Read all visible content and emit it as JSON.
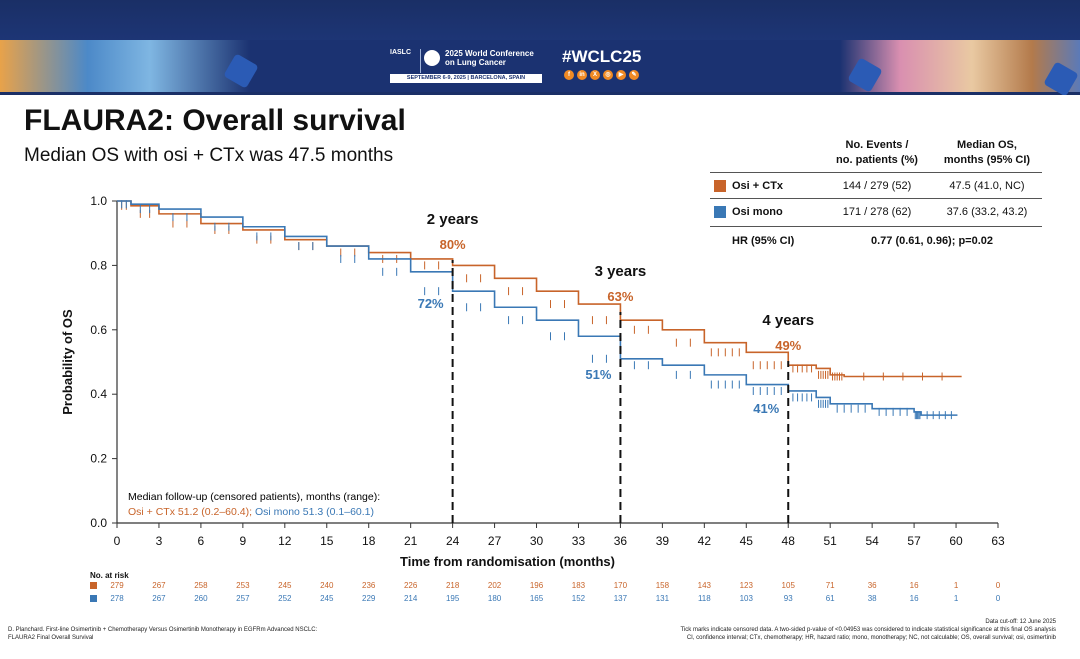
{
  "banner": {
    "society": "IASLC",
    "conference_line1": "2025 World Conference",
    "conference_line2": "on Lung Cancer",
    "dates_location": "SEPTEMBER 6-9, 2025 | BARCELONA, SPAIN",
    "hashtag": "#WCLC25",
    "social_icons": [
      "facebook-icon",
      "linkedin-icon",
      "x-icon",
      "instagram-icon",
      "youtube-icon",
      "podcast-icon"
    ]
  },
  "slide": {
    "title": "FLAURA2: Overall survival",
    "subtitle": "Median OS with osi + CTx was 47.5 months"
  },
  "table": {
    "col1_line1": "No. Events /",
    "col1_line2": "no. patients (%)",
    "col2_line1": "Median OS,",
    "col2_line2": "months (95% CI)",
    "rows": [
      {
        "arm": "Osi + CTx",
        "events": "144 / 279 (52)",
        "median": "47.5 (41.0, NC)",
        "color": "#c8642a"
      },
      {
        "arm": "Osi mono",
        "events": "171 / 278 (62)",
        "median": "37.6 (33.2, 43.2)",
        "color": "#3a78b5"
      }
    ],
    "hr_label": "HR (95% CI)",
    "hr_value": "0.77 (0.61, 0.96); p=0.02"
  },
  "followup": {
    "heading": "Median follow-up (censored patients), months (range):",
    "osi_ctx": "Osi + CTx 51.2 (0.2–60.4);",
    "osi_mono": "Osi mono 51.3 (0.1–60.1)"
  },
  "chart_data": {
    "type": "line",
    "xlabel": "Time from randomisation (months)",
    "ylabel": "Probability of OS",
    "xlim": [
      0,
      63
    ],
    "ylim": [
      0,
      1.0
    ],
    "xticks": [
      "0",
      "3",
      "6",
      "9",
      "12",
      "15",
      "18",
      "21",
      "24",
      "27",
      "30",
      "33",
      "36",
      "39",
      "42",
      "45",
      "48",
      "51",
      "54",
      "57",
      "60",
      "63"
    ],
    "yticks": [
      "0.0",
      "0.2",
      "0.4",
      "0.6",
      "0.8",
      "1.0"
    ],
    "landmarks": [
      {
        "month": 24,
        "label": "2 years",
        "osi_ctx": "80%",
        "osi_mono": "72%"
      },
      {
        "month": 36,
        "label": "3 years",
        "osi_ctx": "63%",
        "osi_mono": "51%"
      },
      {
        "month": 48,
        "label": "4 years",
        "osi_ctx": "49%",
        "osi_mono": "41%"
      }
    ],
    "series": [
      {
        "name": "Osi + CTx",
        "color": "#c8642a",
        "points": [
          [
            0,
            1.0
          ],
          [
            1,
            0.985
          ],
          [
            3,
            0.96
          ],
          [
            6,
            0.93
          ],
          [
            9,
            0.91
          ],
          [
            12,
            0.88
          ],
          [
            15,
            0.86
          ],
          [
            18,
            0.84
          ],
          [
            21,
            0.82
          ],
          [
            24,
            0.8
          ],
          [
            27,
            0.76
          ],
          [
            30,
            0.72
          ],
          [
            33,
            0.68
          ],
          [
            36,
            0.63
          ],
          [
            39,
            0.6
          ],
          [
            42,
            0.56
          ],
          [
            45,
            0.53
          ],
          [
            48,
            0.49
          ],
          [
            50,
            0.48
          ],
          [
            51,
            0.46
          ],
          [
            52,
            0.455
          ],
          [
            60.4,
            0.455
          ]
        ]
      },
      {
        "name": "Osi mono",
        "color": "#3a78b5",
        "points": [
          [
            0,
            1.0
          ],
          [
            1,
            0.99
          ],
          [
            3,
            0.975
          ],
          [
            6,
            0.95
          ],
          [
            9,
            0.92
          ],
          [
            12,
            0.89
          ],
          [
            15,
            0.86
          ],
          [
            18,
            0.82
          ],
          [
            21,
            0.78
          ],
          [
            24,
            0.72
          ],
          [
            27,
            0.67
          ],
          [
            30,
            0.63
          ],
          [
            33,
            0.58
          ],
          [
            36,
            0.51
          ],
          [
            39,
            0.49
          ],
          [
            42,
            0.46
          ],
          [
            45,
            0.43
          ],
          [
            48,
            0.41
          ],
          [
            50,
            0.39
          ],
          [
            51,
            0.37
          ],
          [
            54,
            0.355
          ],
          [
            57,
            0.345
          ],
          [
            57.5,
            0.335
          ],
          [
            60.1,
            0.335
          ]
        ]
      }
    ],
    "risk_table": {
      "label": "No. at risk",
      "osi_ctx": [
        "279",
        "267",
        "258",
        "253",
        "245",
        "240",
        "236",
        "226",
        "218",
        "202",
        "196",
        "183",
        "170",
        "158",
        "143",
        "123",
        "105",
        "71",
        "36",
        "16",
        "1",
        "0"
      ],
      "osi_mono": [
        "278",
        "267",
        "260",
        "257",
        "252",
        "245",
        "229",
        "214",
        "195",
        "180",
        "165",
        "152",
        "137",
        "131",
        "118",
        "103",
        "93",
        "61",
        "38",
        "16",
        "1",
        "0"
      ]
    }
  },
  "footer": {
    "left_line1": "D. Planchard. First-line Osimertinib + Chemotherapy Versus Osimertinib Monotherapy in EGFRm Advanced NSCLC:",
    "left_line2": "FLAURA2 Final Overall Survival",
    "right_line1": "Data cut-off: 12 June 2025",
    "right_line2": "Tick marks indicate censored data. A two-sided p-value of <0.04953 was considered to indicate statistical significance at this final OS analysis",
    "right_line3": "CI, confidence interval; CTx, chemotherapy; HR, hazard ratio; mono, monotherapy; NC, not calculable; OS, overall survival; osi, osimertinib"
  }
}
